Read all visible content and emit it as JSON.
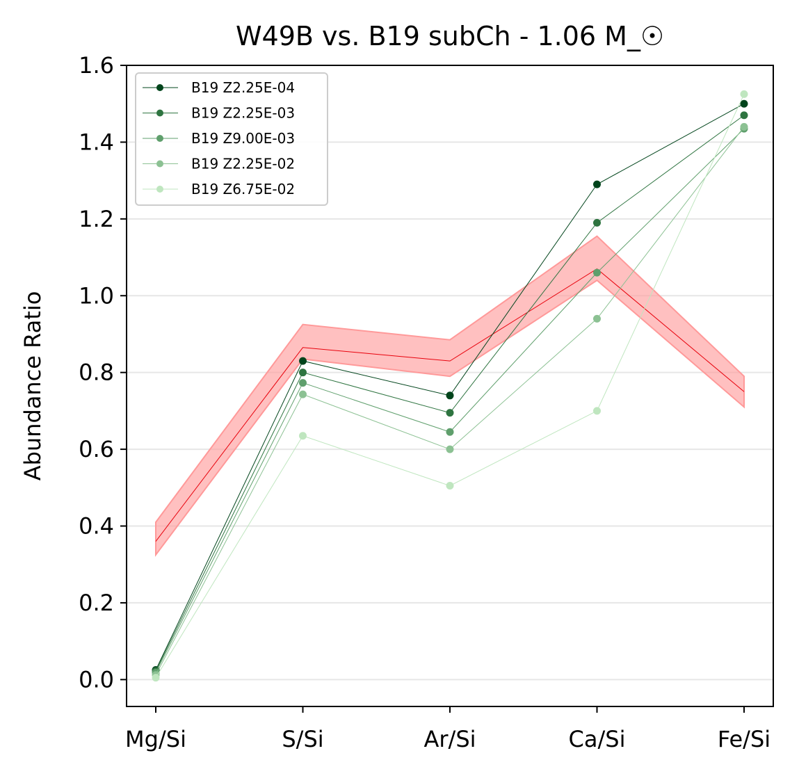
{
  "chart_data": {
    "type": "line",
    "title": "W49B vs. B19 subCh - 1.06 M_☉",
    "xlabel": "",
    "ylabel": "Abundance Ratio",
    "categories": [
      "Mg/Si",
      "S/Si",
      "Ar/Si",
      "Ca/Si",
      "Fe/Si"
    ],
    "ylim": [
      -0.07,
      1.6
    ],
    "yticks": [
      0.0,
      0.2,
      0.4,
      0.6,
      0.8,
      1.0,
      1.2,
      1.4,
      1.6
    ],
    "ytick_labels": [
      "0.0",
      "0.2",
      "0.4",
      "0.6",
      "0.8",
      "1.0",
      "1.2",
      "1.4",
      "1.6"
    ],
    "grid": "horizontal",
    "legend_position": "top-left",
    "observed": {
      "name": "W49B",
      "color": "#e8000b",
      "band_color": "#ff9999",
      "values": [
        0.36,
        0.865,
        0.83,
        1.07,
        0.75
      ],
      "lower": [
        0.325,
        0.835,
        0.79,
        1.04,
        0.71
      ],
      "upper": [
        0.41,
        0.925,
        0.885,
        1.155,
        0.79
      ]
    },
    "series": [
      {
        "name": "B19 Z2.25E-04",
        "color": "#00441b",
        "values": [
          0.025,
          0.83,
          0.74,
          1.29,
          1.5
        ]
      },
      {
        "name": "B19 Z2.25E-03",
        "color": "#2e7440",
        "values": [
          0.022,
          0.8,
          0.695,
          1.19,
          1.47
        ]
      },
      {
        "name": "B19 Z9.00E-03",
        "color": "#5f9f6c",
        "values": [
          0.018,
          0.773,
          0.645,
          1.06,
          1.435
        ]
      },
      {
        "name": "B19 Z2.25E-02",
        "color": "#8cc193",
        "values": [
          0.012,
          0.743,
          0.6,
          0.94,
          1.44
        ]
      },
      {
        "name": "B19 Z6.75E-02",
        "color": "#bfe6bf",
        "values": [
          0.005,
          0.635,
          0.505,
          0.7,
          1.525
        ]
      }
    ]
  }
}
